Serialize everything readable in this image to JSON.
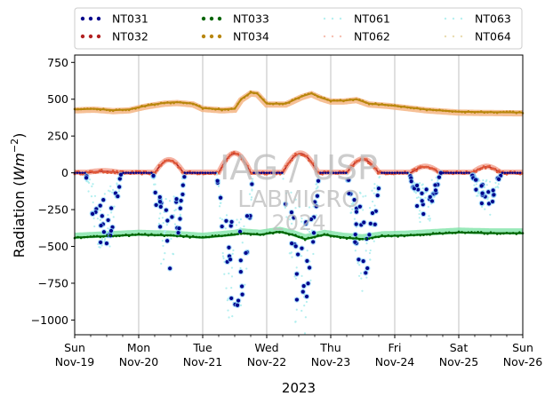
{
  "chart_data": {
    "type": "scatter",
    "title": "",
    "xlabel": "2023",
    "ylabel_main": "Radiation (",
    "ylabel_unit": "Wm",
    "ylabel_exp": "−2",
    "ylabel_close": ")",
    "ylim": [
      -1100,
      800
    ],
    "xlim": [
      0,
      7
    ],
    "yticks": [
      750,
      500,
      250,
      0,
      -250,
      -500,
      -750,
      -1000
    ],
    "ytick_labels": [
      "750",
      "500",
      "250",
      "0",
      "−250",
      "−500",
      "−750",
      "−1000"
    ],
    "xticks": [
      {
        "x": 0,
        "day": "Sun",
        "date": "Nov-19"
      },
      {
        "x": 1,
        "day": "Mon",
        "date": "Nov-20"
      },
      {
        "x": 2,
        "day": "Tue",
        "date": "Nov-21"
      },
      {
        "x": 3,
        "day": "Wed",
        "date": "Nov-22"
      },
      {
        "x": 4,
        "day": "Thu",
        "date": "Nov-23"
      },
      {
        "x": 5,
        "day": "Fri",
        "date": "Nov-24"
      },
      {
        "x": 6,
        "day": "Sat",
        "date": "Nov-25"
      },
      {
        "x": 7,
        "day": "Sun",
        "date": "Nov-26"
      }
    ],
    "grid": "vertical",
    "legend_placement": "top, outside, 4 columns",
    "watermark": [
      "IAG / USP",
      "LABMICRO",
      "2024"
    ],
    "series": [
      {
        "name": "NT031",
        "color": "#00008b",
        "style": "dots"
      },
      {
        "name": "NT032",
        "color": "#b22222",
        "style": "dots"
      },
      {
        "name": "NT033",
        "color": "#006400",
        "style": "dots"
      },
      {
        "name": "NT034",
        "color": "#b8860b",
        "style": "dots"
      },
      {
        "name": "NT061",
        "color": "#aeeeee",
        "style": "faint-dots"
      },
      {
        "name": "NT062",
        "color": "#f4b8a8",
        "style": "faint-dots"
      },
      {
        "name": "NT063",
        "color": "#aeeeee",
        "style": "faint-dots"
      },
      {
        "name": "NT064",
        "color": "#e8d8a8",
        "style": "faint-dots"
      }
    ],
    "profiles": {
      "longwave_down": [
        [
          0,
          430
        ],
        [
          0.3,
          435
        ],
        [
          0.6,
          425
        ],
        [
          0.85,
          430
        ],
        [
          1.1,
          455
        ],
        [
          1.4,
          475
        ],
        [
          1.6,
          480
        ],
        [
          1.85,
          470
        ],
        [
          2.0,
          440
        ],
        [
          2.3,
          430
        ],
        [
          2.5,
          435
        ],
        [
          2.6,
          500
        ],
        [
          2.75,
          545
        ],
        [
          2.85,
          540
        ],
        [
          3.0,
          470
        ],
        [
          3.3,
          470
        ],
        [
          3.55,
          520
        ],
        [
          3.7,
          540
        ],
        [
          3.85,
          510
        ],
        [
          4.0,
          490
        ],
        [
          4.2,
          490
        ],
        [
          4.4,
          500
        ],
        [
          4.6,
          470
        ],
        [
          4.9,
          460
        ],
        [
          5.2,
          445
        ],
        [
          5.5,
          430
        ],
        [
          6.0,
          415
        ],
        [
          6.5,
          412
        ],
        [
          7.0,
          410
        ]
      ],
      "longwave_up": [
        [
          0,
          -440
        ],
        [
          0.5,
          -430
        ],
        [
          1.0,
          -420
        ],
        [
          1.5,
          -425
        ],
        [
          2.0,
          -440
        ],
        [
          2.5,
          -420
        ],
        [
          2.6,
          -410
        ],
        [
          2.9,
          -420
        ],
        [
          3.2,
          -400
        ],
        [
          3.4,
          -420
        ],
        [
          3.6,
          -450
        ],
        [
          3.9,
          -420
        ],
        [
          4.2,
          -440
        ],
        [
          4.5,
          -450
        ],
        [
          4.8,
          -430
        ],
        [
          5.2,
          -425
        ],
        [
          5.6,
          -415
        ],
        [
          6.0,
          -405
        ],
        [
          6.5,
          -410
        ],
        [
          7.0,
          -410
        ]
      ],
      "shortwave_down_day": [
        {
          "x0": 0.17,
          "x1": 0.73,
          "min": -500
        },
        {
          "x0": 1.22,
          "x1": 1.72,
          "min": -700
        },
        {
          "x0": 2.22,
          "x1": 2.8,
          "min": -950
        },
        {
          "x0": 3.25,
          "x1": 3.82,
          "min": -970
        },
        {
          "x0": 4.25,
          "x1": 4.78,
          "min": -680
        },
        {
          "x0": 5.22,
          "x1": 5.72,
          "min": -300
        },
        {
          "x0": 6.2,
          "x1": 6.67,
          "min": -250
        }
      ],
      "shortwave_up_day": [
        {
          "x0": 0.2,
          "x1": 0.7,
          "max": 10
        },
        {
          "x0": 1.25,
          "x1": 1.7,
          "max": 85
        },
        {
          "x0": 2.25,
          "x1": 2.75,
          "max": 130
        },
        {
          "x0": 3.25,
          "x1": 3.8,
          "max": 130
        },
        {
          "x0": 4.25,
          "x1": 4.75,
          "max": 90
        },
        {
          "x0": 5.25,
          "x1": 5.7,
          "max": 40
        },
        {
          "x0": 6.22,
          "x1": 6.65,
          "max": 40
        }
      ]
    }
  }
}
